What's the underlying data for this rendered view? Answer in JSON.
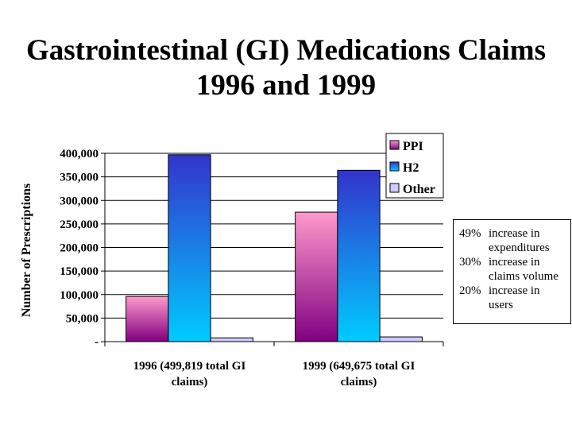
{
  "chart_data": {
    "type": "bar",
    "title_line1": "Gastrointestinal (GI) Medications Claims",
    "title_line2": "1996 and 1999",
    "ylabel": "Number of Prescriptions",
    "xlabel": "",
    "ylim": [
      0,
      400000
    ],
    "yticks": [
      0,
      50000,
      100000,
      150000,
      200000,
      250000,
      300000,
      350000,
      400000
    ],
    "ytick_labels": [
      "-",
      "50,000",
      "100,000",
      "150,000",
      "200,000",
      "250,000",
      "300,000",
      "350,000",
      "400,000"
    ],
    "categories": [
      {
        "line1": "1996 (499,819 total GI",
        "line2": "claims)"
      },
      {
        "line1": "1999 (649,675 total GI",
        "line2": "claims)"
      }
    ],
    "series": [
      {
        "name": "PPI",
        "values": [
          96000,
          275000
        ],
        "color_top": "#ff99cc",
        "color_bottom": "#800080"
      },
      {
        "name": "H2",
        "values": [
          397000,
          364000
        ],
        "color_top": "#3333cc",
        "color_bottom": "#00ccff"
      },
      {
        "name": "Other",
        "values": [
          8000,
          10000
        ],
        "color_top": "#ccccff",
        "color_bottom": "#ccccff"
      }
    ],
    "grid": true,
    "legend_position": "top-right"
  },
  "notes": [
    {
      "pct": "49%",
      "lines": [
        "increase in",
        "expenditures"
      ]
    },
    {
      "pct": "30%",
      "lines": [
        "increase in",
        "claims volume"
      ]
    },
    {
      "pct": "20%",
      "lines": [
        "increase in",
        "users"
      ]
    }
  ]
}
